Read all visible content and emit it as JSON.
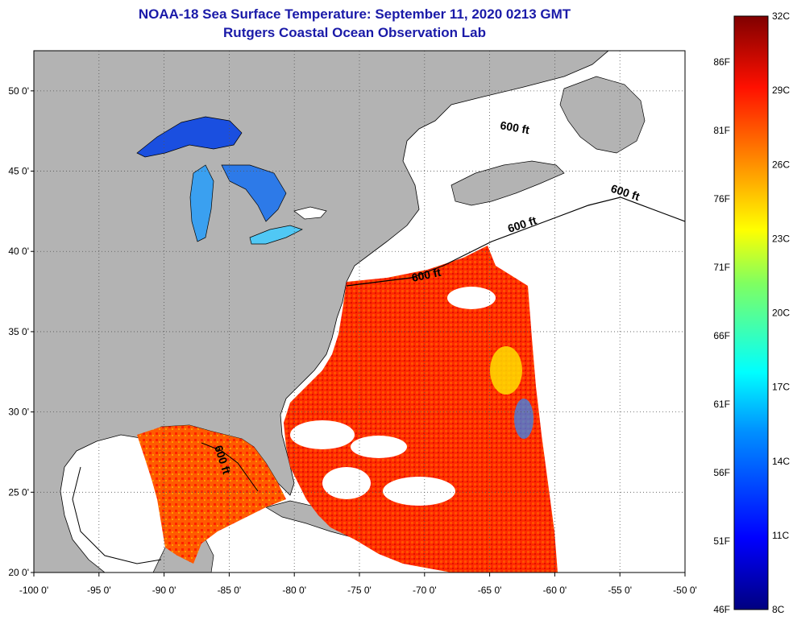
{
  "title": {
    "line1": "NOAA-18 Sea Surface Temperature:  September 11, 2020 0213 GMT",
    "line2": "Rutgers Coastal Ocean Observation Lab"
  },
  "map": {
    "lon_range": [
      -100,
      -50
    ],
    "lat_range": [
      20,
      52.5
    ],
    "lon_ticks": [
      "-100 0'",
      "-95 0'",
      "-90 0'",
      "-85 0'",
      "-80 0'",
      "-75 0'",
      "-70 0'",
      "-65 0'",
      "-60 0'",
      "-55 0'",
      "-50 0'"
    ],
    "lat_ticks": [
      "20 0'",
      "25 0'",
      "30 0'",
      "35 0'",
      "40 0'",
      "45 0'",
      "50 0'"
    ],
    "contour_label": "600 ft",
    "colors": {
      "land": "#b3b3b3",
      "water_no_data": "#ffffff",
      "grid": "#555555"
    }
  },
  "colorbar": {
    "celsius_labels": [
      "32C",
      "29C",
      "26C",
      "23C",
      "20C",
      "17C",
      "14C",
      "11C",
      "8C"
    ],
    "fahrenheit_labels": [
      "86F",
      "81F",
      "76F",
      "71F",
      "66F",
      "61F",
      "56F",
      "51F",
      "46F"
    ],
    "range_c": [
      8,
      32
    ],
    "gradient": [
      "#000080",
      "#0000ff",
      "#0080ff",
      "#00ffff",
      "#80ff80",
      "#ffff00",
      "#ff8000",
      "#ff0000",
      "#800000"
    ]
  }
}
